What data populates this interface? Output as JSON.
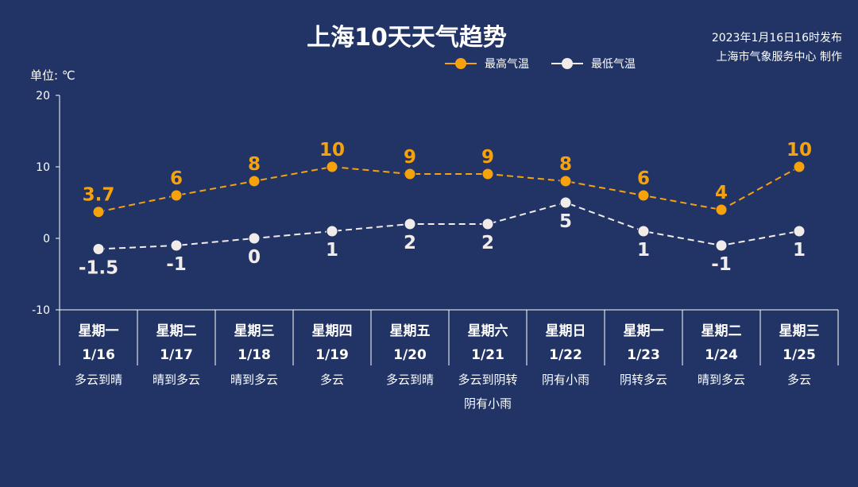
{
  "title": "上海10天天气趋势",
  "publisher": {
    "time": "2023年1月16日16时发布",
    "org": "上海市气象服务中心 制作"
  },
  "unit_label": "单位: ℃",
  "colors": {
    "background": "#213465",
    "high": "#f6a20d",
    "low": "#f1ecea",
    "axis": "#ffffff"
  },
  "chart_data": {
    "type": "line",
    "ylim": [
      -10,
      20
    ],
    "yticks": [
      "-10",
      "0",
      "10",
      "20"
    ],
    "legend_position": "top-right",
    "grid": false,
    "categories": [
      {
        "weekday": "星期一",
        "date": "1/16",
        "weather": "多云到晴"
      },
      {
        "weekday": "星期二",
        "date": "1/17",
        "weather": "晴到多云"
      },
      {
        "weekday": "星期三",
        "date": "1/18",
        "weather": "晴到多云"
      },
      {
        "weekday": "星期四",
        "date": "1/19",
        "weather": "多云"
      },
      {
        "weekday": "星期五",
        "date": "1/20",
        "weather": "多云到晴"
      },
      {
        "weekday": "星期六",
        "date": "1/21",
        "weather": "多云到阴转阴有小雨"
      },
      {
        "weekday": "星期日",
        "date": "1/22",
        "weather": "阴有小雨"
      },
      {
        "weekday": "星期一",
        "date": "1/23",
        "weather": "阴转多云"
      },
      {
        "weekday": "星期二",
        "date": "1/24",
        "weather": "晴到多云"
      },
      {
        "weekday": "星期三",
        "date": "1/25",
        "weather": "多云"
      }
    ],
    "series": [
      {
        "name": "最高气温",
        "key": "high",
        "values": [
          3.7,
          6,
          8,
          10,
          9,
          9,
          8,
          6,
          4,
          10
        ],
        "labels": [
          "3.7",
          "6",
          "8",
          "10",
          "9",
          "9",
          "8",
          "6",
          "4",
          "10"
        ]
      },
      {
        "name": "最低气温",
        "key": "low",
        "values": [
          -1.5,
          -1,
          0,
          1,
          2,
          2,
          5,
          1,
          -1,
          1
        ],
        "labels": [
          "-1.5",
          "-1",
          "0",
          "1",
          "2",
          "2",
          "5",
          "1",
          "-1",
          "1"
        ]
      }
    ]
  }
}
